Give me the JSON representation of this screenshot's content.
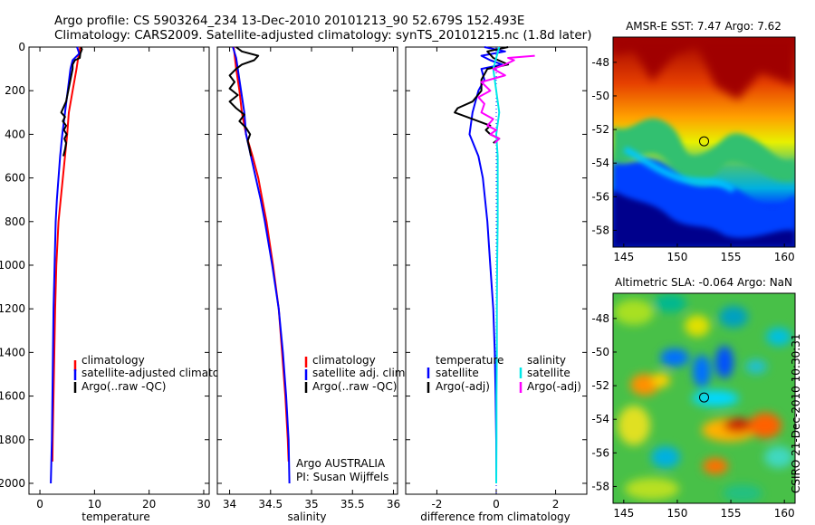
{
  "header": {
    "line1": "Argo profile: CS 5903264_234 13-Dec-2010 20101213_90 52.679S 152.493E",
    "line2": "Climatology: CARS2009. Satellite-adjusted climatology: synTS_20101215.nc (1.8d later)"
  },
  "watermark": "CSIRO 21-Dec-2010 10:30:31",
  "chart_data": [
    {
      "type": "line",
      "panel": "temperature",
      "xlabel": "temperature",
      "ylabel": "",
      "xlim": [
        -2,
        31
      ],
      "ylim": [
        2050,
        0
      ],
      "x_ticks": [
        0,
        10,
        20,
        30
      ],
      "y_ticks": [
        0,
        200,
        400,
        600,
        800,
        1000,
        1200,
        1400,
        1600,
        1800,
        2000
      ],
      "legend": [
        "climatology",
        "satellite-adjusted climatology",
        "Argo(..raw -QC)"
      ],
      "series": [
        {
          "name": "climatology",
          "color": "#ff0000",
          "depth": [
            0,
            50,
            100,
            200,
            300,
            400,
            500,
            600,
            700,
            800,
            1000,
            1200,
            1400,
            1600,
            1800,
            1900
          ],
          "values": [
            7.4,
            7.0,
            6.7,
            6.0,
            5.3,
            5.0,
            4.6,
            4.2,
            3.8,
            3.4,
            3.0,
            2.8,
            2.65,
            2.5,
            2.35,
            2.3
          ]
        },
        {
          "name": "satellite-adjusted climatology",
          "color": "#0000ff",
          "depth": [
            0,
            30,
            60,
            100,
            200,
            300,
            400,
            500,
            600,
            700,
            800,
            1000,
            1200,
            1400,
            1600,
            1800,
            2000
          ],
          "values": [
            6.8,
            7.2,
            6.0,
            5.6,
            5.1,
            4.6,
            4.1,
            3.7,
            3.4,
            3.1,
            2.9,
            2.7,
            2.5,
            2.4,
            2.3,
            2.2,
            2.0
          ]
        },
        {
          "name": "Argo(..raw -QC)",
          "color": "#000000",
          "depth": [
            0,
            10,
            30,
            50,
            60,
            80,
            100,
            150,
            200,
            250,
            300,
            320,
            340,
            360,
            380,
            400,
            420,
            440,
            470,
            500
          ],
          "values": [
            7.5,
            7.7,
            7.4,
            7.3,
            6.4,
            6.0,
            6.0,
            5.6,
            5.2,
            4.8,
            3.9,
            4.6,
            4.2,
            4.8,
            4.4,
            4.9,
            4.5,
            4.8,
            4.6,
            4.3
          ]
        }
      ]
    },
    {
      "type": "line",
      "panel": "salinity",
      "xlabel": "salinity",
      "ylabel": "",
      "xlim": [
        33.85,
        36.05
      ],
      "ylim": [
        2050,
        0
      ],
      "x_ticks": [
        34,
        34.5,
        35,
        35.5,
        36
      ],
      "x_tick_labels": [
        "34",
        "34.5",
        "35",
        "35.5",
        "36"
      ],
      "legend": [
        "climatology",
        "satellite adj. clim.",
        "Argo(..raw -QC)"
      ],
      "annotations": [
        "Argo AUSTRALIA",
        "PI: Susan Wijffels"
      ],
      "series": [
        {
          "name": "climatology",
          "color": "#ff0000",
          "depth": [
            0,
            100,
            200,
            300,
            400,
            500,
            600,
            700,
            800,
            1000,
            1200,
            1400,
            1600,
            1800,
            1900
          ],
          "values": [
            34.05,
            34.08,
            34.12,
            34.15,
            34.2,
            34.28,
            34.35,
            34.4,
            34.45,
            34.53,
            34.6,
            34.64,
            34.68,
            34.71,
            34.72
          ]
        },
        {
          "name": "satellite adj. clim.",
          "color": "#0000ff",
          "depth": [
            0,
            50,
            100,
            150,
            200,
            300,
            400,
            500,
            600,
            700,
            800,
            1000,
            1200,
            1400,
            1600,
            1800,
            2000
          ],
          "values": [
            34.04,
            34.08,
            34.1,
            34.12,
            34.14,
            34.18,
            34.2,
            34.26,
            34.32,
            34.38,
            34.43,
            34.52,
            34.6,
            34.65,
            34.69,
            34.72,
            34.73
          ]
        },
        {
          "name": "Argo(..raw -QC)",
          "color": "#000000",
          "depth": [
            0,
            20,
            40,
            60,
            80,
            100,
            130,
            160,
            190,
            220,
            250,
            280,
            310,
            340,
            370,
            400,
            430,
            460,
            500
          ],
          "values": [
            34.08,
            34.15,
            34.35,
            34.3,
            34.15,
            34.08,
            34.0,
            34.06,
            34.0,
            34.1,
            34.0,
            34.08,
            34.18,
            34.12,
            34.2,
            34.25,
            34.22,
            34.24,
            34.26
          ]
        }
      ]
    },
    {
      "type": "line",
      "panel": "difference",
      "xlabel": "difference from climatology",
      "ylabel": "",
      "xlim": [
        -3.05,
        3.05
      ],
      "ylim": [
        2050,
        0
      ],
      "x_ticks": [
        -2,
        0,
        2
      ],
      "legend_titles": [
        "temperature",
        "salinity"
      ],
      "legend": [
        "satellite",
        "Argo(-adj)",
        "satellite",
        "Argo(-adj)"
      ],
      "series": [
        {
          "name": "temperature satellite",
          "color": "#0000ff",
          "depth": [
            0,
            20,
            40,
            60,
            80,
            100,
            150,
            200,
            300,
            400,
            500,
            600,
            800,
            1000,
            1200,
            1400,
            1600,
            1800,
            2000
          ],
          "values": [
            -0.4,
            0.3,
            -0.5,
            -0.2,
            0.2,
            -0.5,
            -0.4,
            -0.6,
            -0.8,
            -0.9,
            -0.6,
            -0.45,
            -0.3,
            -0.2,
            -0.1,
            -0.05,
            -0.02,
            0.0,
            0.0
          ]
        },
        {
          "name": "temperature Argo(-adj)",
          "color": "#000000",
          "depth": [
            0,
            20,
            50,
            80,
            100,
            150,
            200,
            250,
            280,
            300,
            320,
            340,
            360,
            380,
            400,
            420,
            440
          ],
          "values": [
            0.4,
            -0.3,
            -0.1,
            0.4,
            -0.3,
            -0.5,
            -0.5,
            -0.8,
            -1.3,
            -1.4,
            -1.0,
            -0.6,
            -0.2,
            -0.35,
            -0.2,
            0.1,
            -0.1
          ]
        },
        {
          "name": "salinity satellite",
          "color": "#00e8e8",
          "depth": [
            0,
            50,
            100,
            200,
            300,
            400,
            500,
            600,
            700,
            800,
            1000,
            1200,
            1400,
            1600,
            1800,
            2000
          ],
          "values": [
            0.1,
            0.0,
            -0.1,
            0.0,
            0.1,
            0.0,
            0.05,
            0.05,
            0.05,
            0.05,
            0.03,
            0.02,
            0.02,
            0.01,
            0.01,
            0.0
          ]
        },
        {
          "name": "salinity Argo(-adj)",
          "color": "#ff00ff",
          "depth": [
            40,
            50,
            60,
            80,
            100,
            130,
            160,
            200,
            230,
            260,
            300,
            330,
            360,
            380,
            400,
            420,
            440
          ],
          "values": [
            1.3,
            0.4,
            0.6,
            0.3,
            -0.1,
            0.3,
            -0.5,
            -0.2,
            -0.6,
            -0.4,
            -0.5,
            -0.1,
            -0.3,
            0.0,
            -0.2,
            0.1,
            -0.05
          ]
        }
      ]
    },
    {
      "type": "heatmap",
      "title": "AMSR-E SST: 7.47 Argo: 7.62",
      "xlim": [
        144,
        161
      ],
      "ylim": [
        -59,
        -46.5
      ],
      "x_ticks": [
        145,
        150,
        155,
        160
      ],
      "y_ticks": [
        -58,
        -56,
        -54,
        -52,
        -50,
        -48
      ],
      "marker": {
        "lon": 152.5,
        "lat": -52.7
      },
      "colormap": "jet",
      "pattern": "warm (red) north, cold (blue) south, wavy front near -53"
    },
    {
      "type": "heatmap",
      "title": "Altimetric SLA: -0.064 Argo: NaN",
      "xlim": [
        144,
        161
      ],
      "ylim": [
        -59,
        -46.5
      ],
      "x_ticks": [
        145,
        150,
        155,
        160
      ],
      "y_ticks": [
        -58,
        -56,
        -54,
        -52,
        -50,
        -48
      ],
      "marker": {
        "lon": 152.5,
        "lat": -52.7
      },
      "colormap": "jet",
      "pattern": "mostly green with blue and red eddies"
    }
  ]
}
